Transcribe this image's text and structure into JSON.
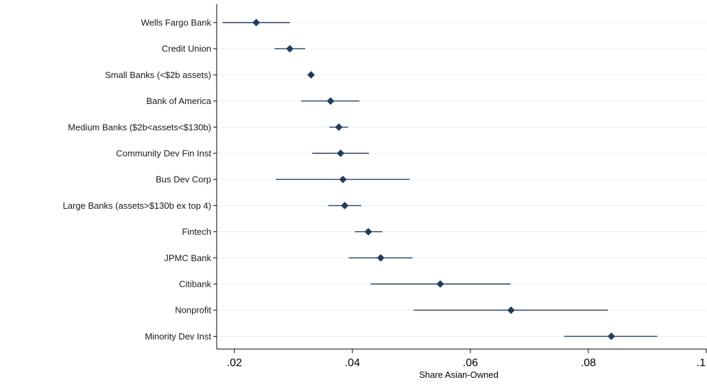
{
  "chart_data": {
    "type": "scatter",
    "title": "",
    "xlabel": "Share Asian-Owned",
    "ylabel": "",
    "xlim": [
      0.017,
      0.1
    ],
    "xticks": [
      0.02,
      0.04,
      0.06,
      0.08,
      0.1
    ],
    "xtick_labels": [
      ".02",
      ".04",
      ".06",
      ".08",
      ".1"
    ],
    "grid": true,
    "error_bars": true,
    "colors": {
      "marker": "#1e3d5c",
      "grid": "#e8eef2",
      "axis": "#000000"
    },
    "categories": [
      "Wells Fargo Bank",
      "Credit Union",
      "Small Banks (<$2b assets)",
      "Bank of America",
      "Medium Banks ($2b<assets<$130b)",
      "Community Dev Fin Inst",
      "Bus Dev Corp",
      "Large Banks (assets>$130b ex top 4)",
      "Fintech",
      "JPMC Bank",
      "Citibank",
      "Nonprofit",
      "Minority Dev Inst"
    ],
    "values": [
      0.0237,
      0.0294,
      0.033,
      0.0363,
      0.0377,
      0.038,
      0.0384,
      0.0387,
      0.0427,
      0.0448,
      0.0549,
      0.0669,
      0.0839
    ],
    "ci_low": [
      0.018,
      0.0268,
      0.0326,
      0.0313,
      0.0361,
      0.0332,
      0.027,
      0.0359,
      0.0404,
      0.0394,
      0.0431,
      0.0504,
      0.0759
    ],
    "ci_high": [
      0.0294,
      0.032,
      0.0334,
      0.0412,
      0.0393,
      0.0428,
      0.0497,
      0.0415,
      0.0451,
      0.0502,
      0.0668,
      0.0833,
      0.0917
    ]
  }
}
